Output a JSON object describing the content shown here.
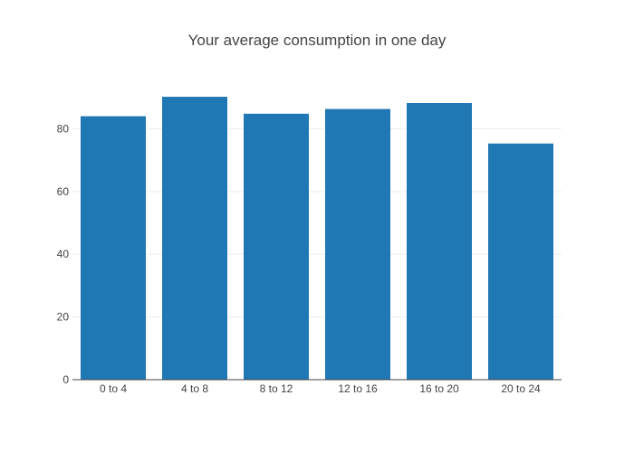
{
  "chart_data": {
    "type": "bar",
    "title": "Your average consumption in one day",
    "xlabel": "",
    "ylabel": "",
    "categories": [
      "0 to 4",
      "4 to 8",
      "8 to 12",
      "12 to 16",
      "16 to 20",
      "20 to 24"
    ],
    "values": [
      84,
      90.2,
      84.8,
      86.3,
      88.2,
      75.3
    ],
    "ylim": [
      0,
      98
    ],
    "yticks": [
      0,
      20,
      40,
      60,
      80
    ],
    "grid": true,
    "legend": "none",
    "bar_color": "#1f77b4",
    "grid_color": "#eeeeee",
    "axis_color": "#444444"
  }
}
